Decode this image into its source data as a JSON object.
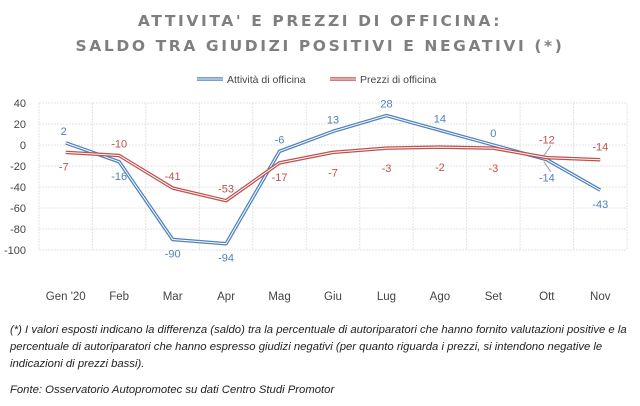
{
  "title_line1": "ATTIVITA' E PREZZI DI OFFICINA:",
  "title_line2": "SALDO TRA GIUDIZI POSITIVI E NEGATIVI (*)",
  "footnote": "(*) I valori esposti indicano la differenza (saldo) tra la percentuale di autoriparatori che hanno fornito valutazioni positive e la percentuale di autoriparatori che hanno espresso giudizi negativi (per quanto riguarda i prezzi, si intendono negative le indicazioni di prezzi bassi).",
  "source": "Fonte: Osservatorio Autopromotec su dati Centro Studi Promotor",
  "chart_data": {
    "type": "line",
    "categories": [
      "Gen '20",
      "Feb",
      "Mar",
      "Apr",
      "Mag",
      "Giu",
      "Lug",
      "Ago",
      "Set",
      "Ott",
      "Nov"
    ],
    "series": [
      {
        "name": "Attività di officina",
        "color": "#4f81bd",
        "values": [
          2,
          -16,
          -90,
          -94,
          -6,
          13,
          28,
          14,
          0,
          -14,
          -43
        ]
      },
      {
        "name": "Prezzi di officina",
        "color": "#c0504d",
        "values": [
          -7,
          -10,
          -41,
          -53,
          -17,
          -7,
          -3,
          -2,
          -3,
          -12,
          -14
        ]
      }
    ],
    "ylim": [
      -100,
      40
    ],
    "yticks": [
      40,
      20,
      0,
      -20,
      -40,
      -60,
      -80,
      -100
    ],
    "grid": true,
    "legend": "top"
  }
}
